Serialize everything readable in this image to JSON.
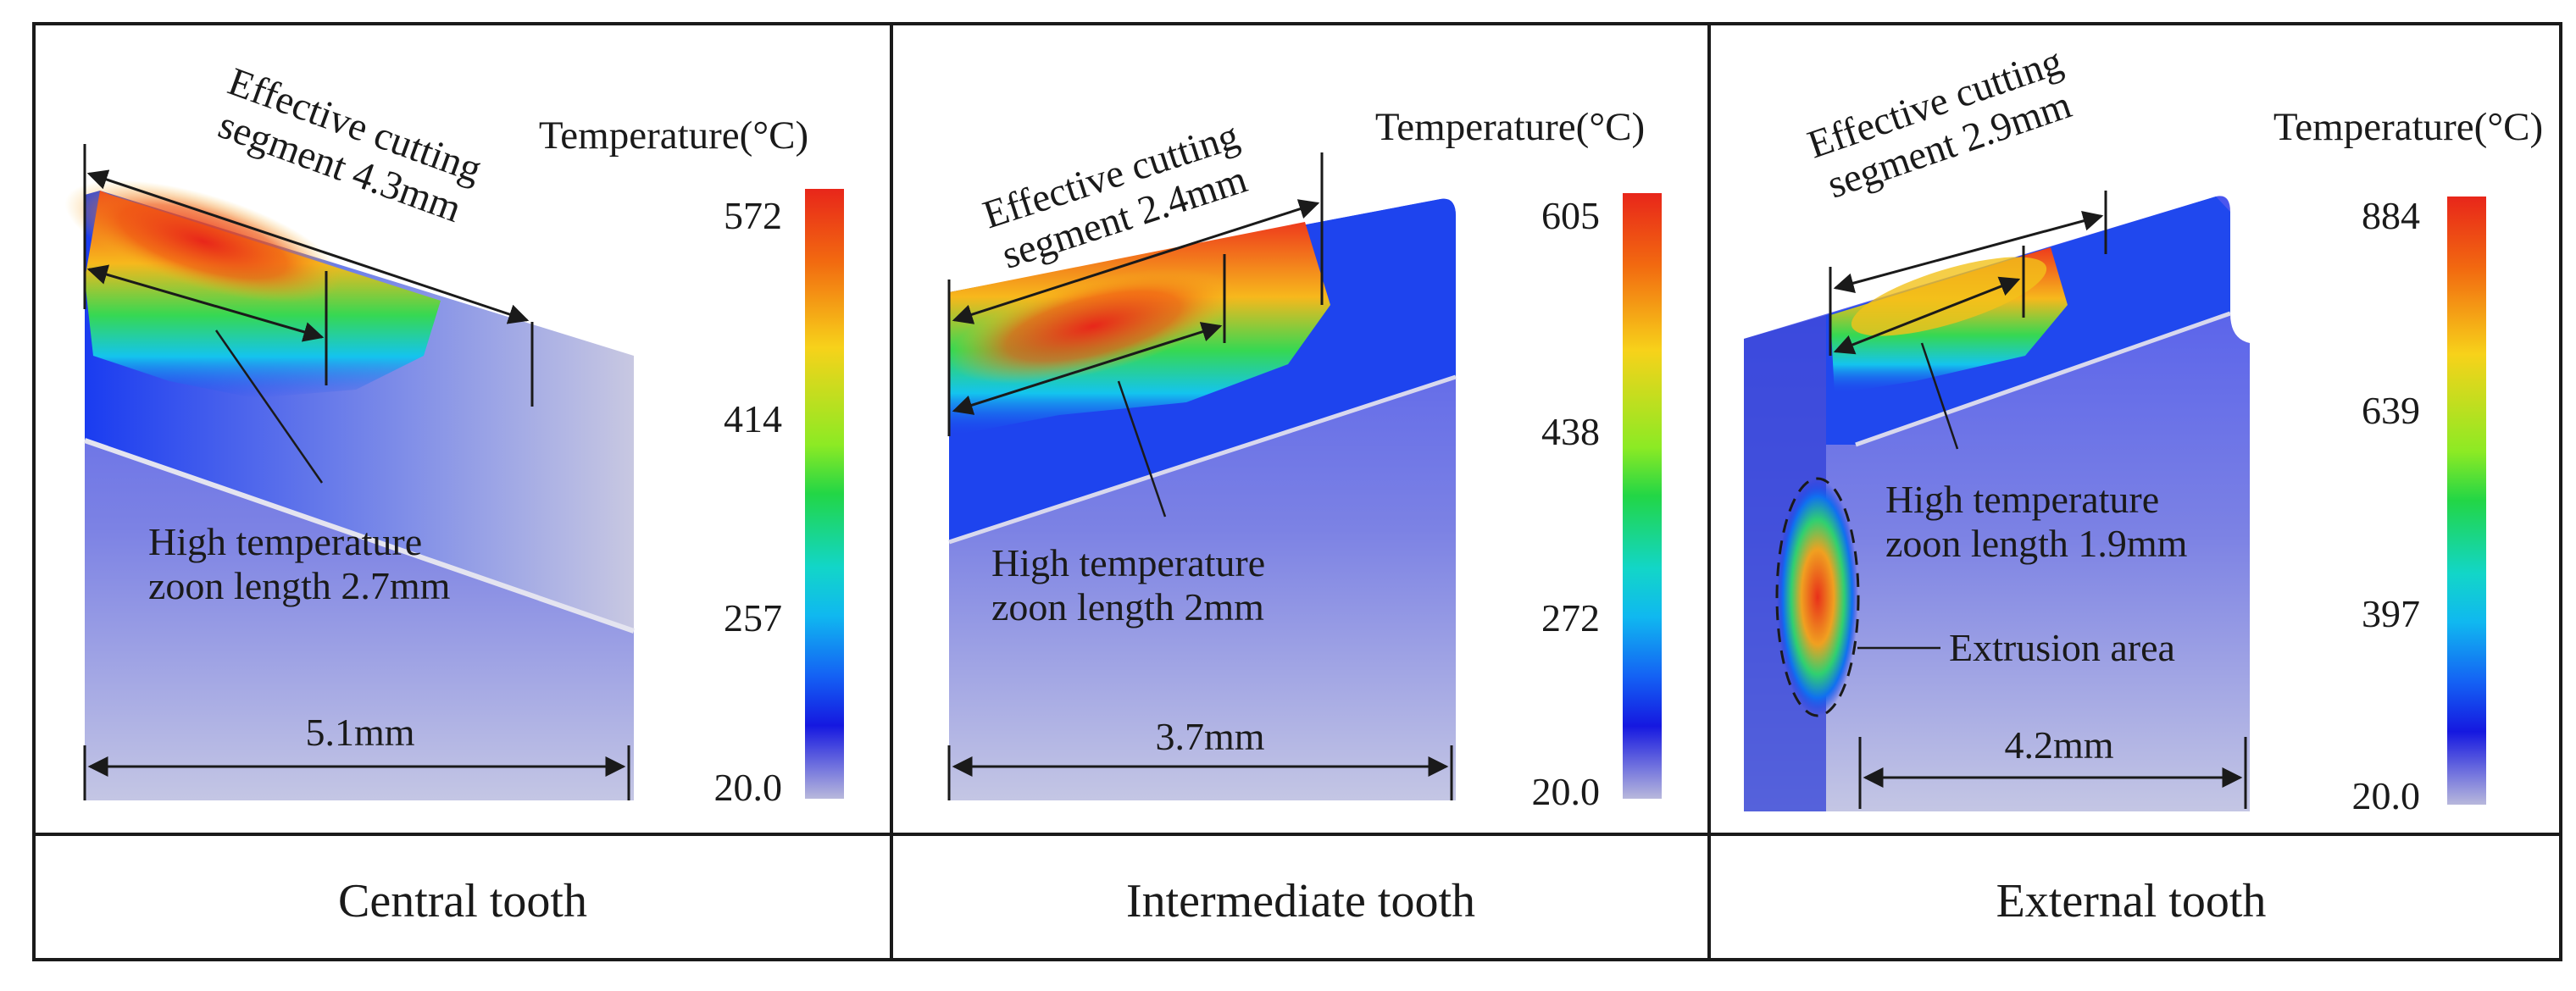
{
  "colors": {
    "hot": "#e8261a",
    "warm": "#f7c21a",
    "mid": "#2ad64a",
    "cool": "#10c8ee",
    "cold": "#1518e0",
    "base": "#b3b3d8"
  },
  "panels": [
    {
      "caption": "Central tooth",
      "legend_title": "Temperature(°C)",
      "legend_ticks": [
        "572",
        "414",
        "257",
        "20.0"
      ],
      "effective_line1": "Effective cutting",
      "effective_line2": "segment 4.3mm",
      "high_line1": "High temperature",
      "high_line2": "zoon  length 2.7mm",
      "width_label": "5.1mm"
    },
    {
      "caption": "Intermediate tooth",
      "legend_title": "Temperature(°C)",
      "legend_ticks": [
        "605",
        "438",
        "272",
        "20.0"
      ],
      "effective_line1": "Effective cutting",
      "effective_line2": "segment 2.4mm",
      "high_line1": "High temperature",
      "high_line2": "zoon  length 2mm",
      "width_label": "3.7mm"
    },
    {
      "caption": "External tooth",
      "legend_title": "Temperature(°C)",
      "legend_ticks": [
        "884",
        "639",
        "397",
        "20.0"
      ],
      "effective_line1": "Effective cutting",
      "effective_line2": "segment 2.9mm",
      "high_line1": "High temperature",
      "high_line2": "zoon  length 1.9mm",
      "width_label": "4.2mm",
      "extrusion_label": "Extrusion area"
    }
  ]
}
